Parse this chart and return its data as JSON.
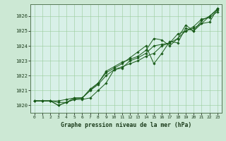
{
  "title": "Graphe pression niveau de la mer (hPa)",
  "background_color": "#cce8d4",
  "plot_bg_color": "#d8f0e8",
  "grid_color": "#99cc99",
  "line_color": "#1a5c1a",
  "marker_color": "#1a5c1a",
  "x_labels": [
    "0",
    "1",
    "2",
    "3",
    "4",
    "5",
    "6",
    "7",
    "8",
    "9",
    "10",
    "11",
    "12",
    "13",
    "14",
    "15",
    "16",
    "17",
    "18",
    "19",
    "20",
    "21",
    "22",
    "23"
  ],
  "ylim": [
    1019.5,
    1026.8
  ],
  "yticks": [
    1020,
    1021,
    1022,
    1023,
    1024,
    1025,
    1026
  ],
  "series": [
    [
      1020.3,
      1020.3,
      1020.3,
      1020.0,
      1020.2,
      1020.4,
      1020.4,
      1020.5,
      1021.0,
      1021.5,
      1022.4,
      1022.6,
      1022.8,
      1023.0,
      1023.3,
      1023.5,
      1024.0,
      1024.2,
      1024.5,
      1025.0,
      1025.2,
      1025.5,
      1026.0,
      1026.4
    ],
    [
      1020.3,
      1020.3,
      1020.3,
      1020.2,
      1020.2,
      1020.4,
      1020.5,
      1021.0,
      1021.4,
      1022.0,
      1022.4,
      1022.5,
      1023.0,
      1023.2,
      1023.5,
      1024.0,
      1024.1,
      1024.2,
      1024.8,
      1025.0,
      1025.3,
      1025.8,
      1025.9,
      1026.3
    ],
    [
      1020.3,
      1020.3,
      1020.3,
      1020.0,
      1020.2,
      1020.5,
      1020.5,
      1021.1,
      1021.5,
      1022.2,
      1022.5,
      1022.8,
      1023.2,
      1023.6,
      1024.0,
      1022.8,
      1023.5,
      1024.3,
      1024.2,
      1025.2,
      1025.0,
      1025.5,
      1025.6,
      1026.5
    ],
    [
      1020.3,
      1020.3,
      1020.3,
      1020.3,
      1020.4,
      1020.5,
      1020.5,
      1021.0,
      1021.5,
      1022.3,
      1022.6,
      1022.9,
      1023.1,
      1023.3,
      1023.7,
      1024.5,
      1024.4,
      1024.0,
      1024.5,
      1025.4,
      1025.0,
      1025.7,
      1026.0,
      1026.5
    ]
  ]
}
